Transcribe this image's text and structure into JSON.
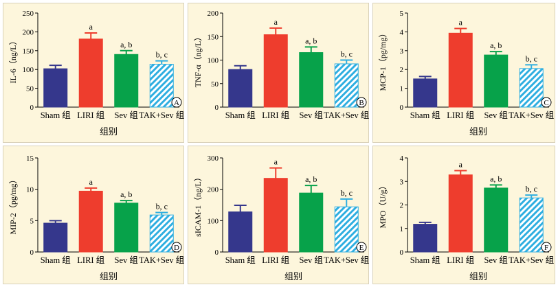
{
  "chart_data": [
    {
      "type": "bar",
      "panel_label": "A",
      "ylabel": "IL-6（ng/L）",
      "xlabel": "组别",
      "categories": [
        "Sham 组",
        "LIRI 组",
        "Sev 组",
        "TAK+Sev 组"
      ],
      "values": [
        102,
        181,
        140,
        114
      ],
      "errors": [
        9,
        16,
        10,
        9
      ],
      "annotations": [
        "",
        "a",
        "a, b",
        "b, c"
      ],
      "ylim": [
        0,
        250
      ],
      "yticks": [
        0,
        50,
        100,
        150,
        200,
        250
      ]
    },
    {
      "type": "bar",
      "panel_label": "B",
      "ylabel": "TNF-α（ng/L）",
      "xlabel": "",
      "categories": [
        "Sham 组",
        "LIRI 组",
        "Sev 组",
        "TAK+Sev 组"
      ],
      "values": [
        80,
        154,
        116,
        92
      ],
      "errors": [
        8,
        14,
        12,
        8
      ],
      "annotations": [
        "",
        "a",
        "a, b",
        "b, c"
      ],
      "ylim": [
        0,
        200
      ],
      "yticks": [
        0,
        50,
        100,
        150,
        200
      ]
    },
    {
      "type": "bar",
      "panel_label": "C",
      "ylabel": "MCP-1（pg/mg）",
      "xlabel": "组别",
      "categories": [
        "Sham 组",
        "LIRI 组",
        "Sev 组",
        "TAK+Sev 组"
      ],
      "values": [
        1.5,
        3.93,
        2.77,
        2.05
      ],
      "errors": [
        0.13,
        0.25,
        0.18,
        0.2
      ],
      "annotations": [
        "",
        "a",
        "a, b",
        "b, c"
      ],
      "ylim": [
        0,
        5
      ],
      "yticks": [
        0,
        1,
        2,
        3,
        4,
        5
      ]
    },
    {
      "type": "bar",
      "panel_label": "D",
      "ylabel": "MIP-2（pg/mg）",
      "xlabel": "组别",
      "categories": [
        "Sham 组",
        "LIRI 组",
        "Sev 组",
        "TAK+Sev 组"
      ],
      "values": [
        4.6,
        9.7,
        7.8,
        5.9
      ],
      "errors": [
        0.4,
        0.5,
        0.4,
        0.4
      ],
      "annotations": [
        "",
        "a",
        "a, b",
        "b, c"
      ],
      "ylim": [
        0,
        15
      ],
      "yticks": [
        0,
        5,
        10,
        15
      ]
    },
    {
      "type": "bar",
      "panel_label": "E",
      "ylabel": "sICAM-1（ng/L）",
      "xlabel": "组别",
      "categories": [
        "Sham 组",
        "LIRI 组",
        "Sev 组",
        "TAK+Sev 组"
      ],
      "values": [
        128,
        235,
        188,
        144
      ],
      "errors": [
        21,
        33,
        24,
        25
      ],
      "annotations": [
        "",
        "a",
        "a, b",
        "b, c"
      ],
      "ylim": [
        0,
        300
      ],
      "yticks": [
        0,
        100,
        200,
        300
      ]
    },
    {
      "type": "bar",
      "panel_label": "F",
      "ylabel": "MPO（U/g）",
      "xlabel": "组别",
      "categories": [
        "Sham 组",
        "LIRI 组",
        "Sev 组",
        "TAK+Sev 组"
      ],
      "values": [
        1.18,
        3.28,
        2.72,
        2.3
      ],
      "errors": [
        0.08,
        0.18,
        0.13,
        0.12
      ],
      "annotations": [
        "",
        "a",
        "a, b",
        "b, c"
      ],
      "ylim": [
        0,
        4
      ],
      "yticks": [
        0,
        1,
        2,
        3,
        4
      ]
    }
  ],
  "colors": {
    "sham": "#35378c",
    "liri": "#ee3d2d",
    "sev": "#07a24a",
    "tak_sev_stripe": "#2eaee0",
    "panel_bg": "#fdf6dc"
  }
}
